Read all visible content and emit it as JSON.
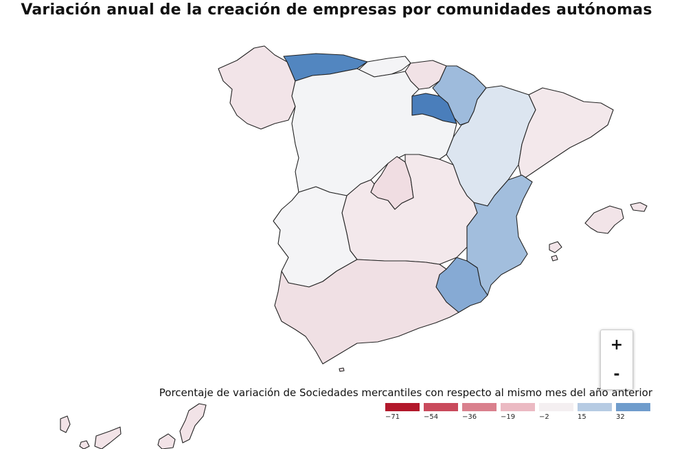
{
  "title": "Variación anual de la creación de empresas por comunidades autónomas",
  "zoom": {
    "in_label": "+",
    "out_label": "-"
  },
  "legend": {
    "title": "Porcentaje de variación de Sociedades mercantiles con respecto al mismo mes del año anterior",
    "items": [
      {
        "label": "−71",
        "color": "#b2182b"
      },
      {
        "label": "−54",
        "color": "#c94a5c"
      },
      {
        "label": "−36",
        "color": "#d9808d"
      },
      {
        "label": "−19",
        "color": "#ebbac3"
      },
      {
        "label": "−2",
        "color": "#f4eff1"
      },
      {
        "label": "15",
        "color": "#b6cbe3"
      },
      {
        "label": "32",
        "color": "#6f9ccc"
      }
    ]
  },
  "regions": [
    {
      "key": "galicia",
      "color": "#f2e4e8"
    },
    {
      "key": "asturias",
      "color": "#5286c0"
    },
    {
      "key": "cantabria",
      "color": "#f4f4f6"
    },
    {
      "key": "pais-vasco",
      "color": "#f1e2e6"
    },
    {
      "key": "navarra",
      "color": "#9ebbdc"
    },
    {
      "key": "la-rioja",
      "color": "#4a7ebb"
    },
    {
      "key": "aragon",
      "color": "#dce5f0"
    },
    {
      "key": "cataluna",
      "color": "#f3e8eb"
    },
    {
      "key": "castilla-y-leon",
      "color": "#f3f4f6"
    },
    {
      "key": "madrid",
      "color": "#f0dde2"
    },
    {
      "key": "castilla-la-mancha",
      "color": "#f3e8eb"
    },
    {
      "key": "extremadura",
      "color": "#f4f4f6"
    },
    {
      "key": "comunidad-valenciana",
      "color": "#a2bedd"
    },
    {
      "key": "murcia",
      "color": "#86aad4"
    },
    {
      "key": "andalucia",
      "color": "#f0e0e4"
    },
    {
      "key": "islas-baleares",
      "color": "#f2e4e8"
    },
    {
      "key": "canarias",
      "color": "#f2e3e7"
    }
  ]
}
